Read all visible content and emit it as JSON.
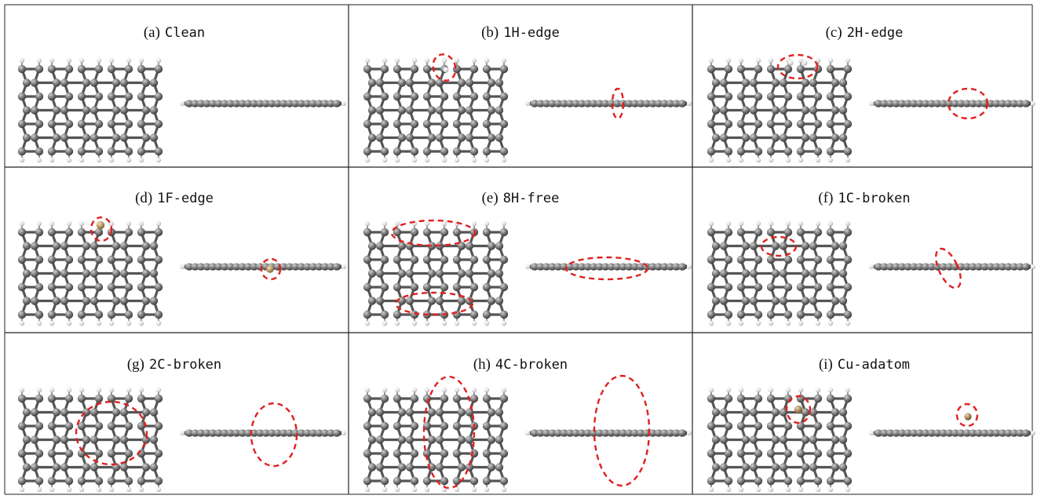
{
  "panels": [
    {
      "prefix": "(a)",
      "code": "Clean"
    },
    {
      "prefix": "(b)",
      "code": "1H-edge"
    },
    {
      "prefix": "(c)",
      "code": "2H-edge"
    },
    {
      "prefix": "(d)",
      "code": "1F-edge"
    },
    {
      "prefix": "(e)",
      "code": "8H-free"
    },
    {
      "prefix": "(f)",
      "code": "1C-broken"
    },
    {
      "prefix": "(g)",
      "code": "2C-broken"
    },
    {
      "prefix": "(h)",
      "code": "4C-broken"
    },
    {
      "prefix": "(i)",
      "code": "Cu-adatom"
    }
  ],
  "colors": {
    "carbon": "#6f6f6f",
    "hydrogen": "#e6e6e6",
    "fluorine": "#b89b63",
    "copper": "#a88a5c",
    "highlight": "#e02020",
    "grid_line": "#222222"
  }
}
